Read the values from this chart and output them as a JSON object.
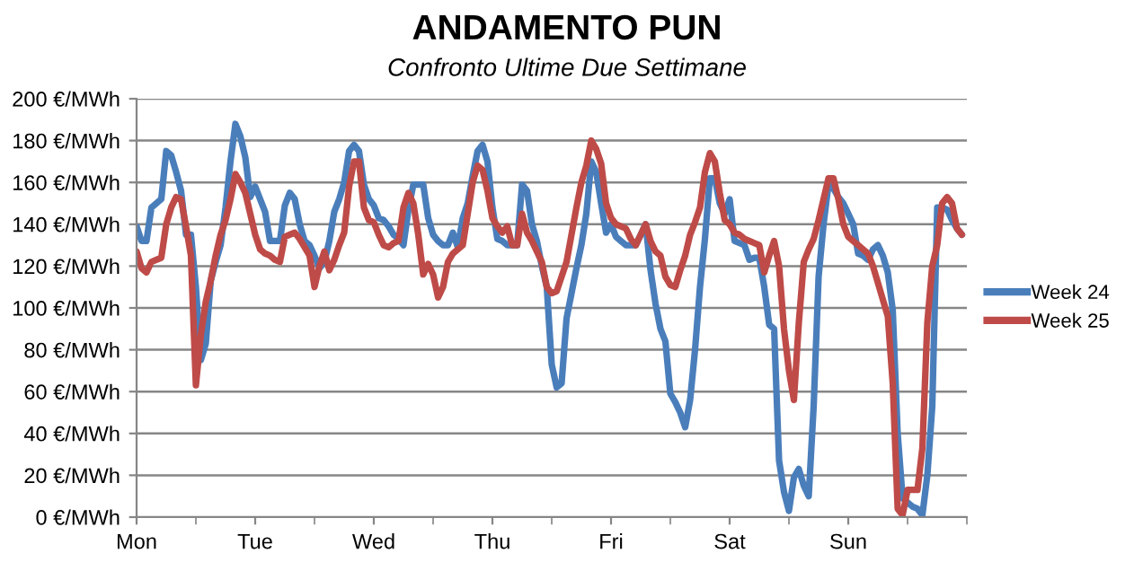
{
  "chart_data": {
    "type": "line",
    "title": "ANDAMENTO PUN",
    "subtitle": "Confronto Ultime Due Settimane",
    "categories": [
      "Mon",
      null,
      null,
      null,
      null,
      null,
      null,
      null,
      null,
      null,
      null,
      null,
      null,
      null,
      null,
      null,
      null,
      null,
      null,
      null,
      null,
      null,
      null,
      null,
      "Tue",
      null,
      null,
      null,
      null,
      null,
      null,
      null,
      null,
      null,
      null,
      null,
      null,
      null,
      null,
      null,
      null,
      null,
      null,
      null,
      null,
      null,
      null,
      null,
      "Wed",
      null,
      null,
      null,
      null,
      null,
      null,
      null,
      null,
      null,
      null,
      null,
      null,
      null,
      null,
      null,
      null,
      null,
      null,
      null,
      null,
      null,
      null,
      null,
      "Thu",
      null,
      null,
      null,
      null,
      null,
      null,
      null,
      null,
      null,
      null,
      null,
      null,
      null,
      null,
      null,
      null,
      null,
      null,
      null,
      null,
      null,
      null,
      null,
      "Fri",
      null,
      null,
      null,
      null,
      null,
      null,
      null,
      null,
      null,
      null,
      null,
      null,
      null,
      null,
      null,
      null,
      null,
      null,
      null,
      null,
      null,
      null,
      null,
      "Sat",
      null,
      null,
      null,
      null,
      null,
      null,
      null,
      null,
      null,
      null,
      null,
      null,
      null,
      null,
      null,
      null,
      null,
      null,
      null,
      null,
      null,
      null,
      null,
      "Sun",
      null,
      null,
      null,
      null,
      null,
      null,
      null,
      null,
      null,
      null,
      null,
      null,
      null,
      null,
      null,
      null,
      null,
      null,
      null,
      null,
      null,
      null,
      null
    ],
    "ylim": [
      0,
      200
    ],
    "yticks": [
      {
        "value": 0,
        "label": "0 €/MWh"
      },
      {
        "value": 20,
        "label": "20 €/MWh"
      },
      {
        "value": 40,
        "label": "40 €/MWh"
      },
      {
        "value": 60,
        "label": "60 €/MWh"
      },
      {
        "value": 80,
        "label": "80 €/MWh"
      },
      {
        "value": 100,
        "label": "100 €/MWh"
      },
      {
        "value": 120,
        "label": "120 €/MWh"
      },
      {
        "value": 140,
        "label": "140 €/MWh"
      },
      {
        "value": 160,
        "label": "160 €/MWh"
      },
      {
        "value": 180,
        "label": "180 €/MWh"
      },
      {
        "value": 200,
        "label": "200 €/MWh"
      }
    ],
    "grid": "y",
    "legend": "right",
    "series": [
      {
        "name": "Week 24",
        "color": "#4a7ebb",
        "values": [
          139,
          132,
          132,
          148,
          150,
          152,
          175,
          173,
          165,
          156,
          135,
          135,
          110,
          75,
          83,
          113,
          122,
          130,
          148,
          170,
          188,
          182,
          172,
          153,
          158,
          152,
          146,
          132,
          132,
          132,
          149,
          155,
          152,
          140,
          132,
          130,
          125,
          119,
          122,
          132,
          146,
          152,
          160,
          175,
          178,
          175,
          159,
          152,
          149,
          143,
          142,
          139,
          135,
          133,
          130,
          147,
          159,
          159,
          159,
          143,
          135,
          132,
          130,
          130,
          136,
          129,
          143,
          150,
          163,
          175,
          178,
          170,
          148,
          133,
          132,
          130,
          130,
          130,
          159,
          156,
          140,
          132,
          120,
          110,
          73,
          62,
          64,
          95,
          107,
          119,
          130,
          145,
          170,
          165,
          150,
          136,
          140,
          134,
          132,
          130,
          130,
          130,
          135,
          140,
          118,
          102,
          90,
          84,
          59,
          55,
          50,
          43,
          56,
          80,
          110,
          133,
          162,
          162,
          150,
          145,
          152,
          132,
          131,
          130,
          123,
          124,
          124,
          110,
          92,
          90,
          27,
          12,
          3,
          19,
          23,
          15,
          10,
          53,
          115,
          140,
          159,
          157,
          153,
          150,
          145,
          140,
          126,
          125,
          123,
          128,
          130,
          125,
          117,
          99,
          40,
          9,
          7,
          5,
          4,
          1,
          20,
          53,
          148,
          148,
          147,
          142,
          138,
          135
        ]
      },
      {
        "name": "Week 25",
        "color": "#be4b48",
        "values": [
          127,
          119,
          117,
          122,
          123,
          124,
          140,
          148,
          153,
          152,
          139,
          125,
          63,
          87,
          103,
          113,
          125,
          135,
          142,
          152,
          164,
          160,
          155,
          145,
          135,
          128,
          126,
          125,
          123,
          122,
          134,
          135,
          136,
          133,
          129,
          125,
          110,
          120,
          127,
          118,
          123,
          130,
          136,
          158,
          170,
          170,
          148,
          142,
          141,
          135,
          130,
          129,
          131,
          132,
          148,
          155,
          150,
          135,
          116,
          121,
          116,
          105,
          110,
          122,
          126,
          128,
          130,
          145,
          160,
          168,
          166,
          156,
          143,
          139,
          136,
          139,
          130,
          130,
          145,
          136,
          132,
          127,
          122,
          110,
          107,
          108,
          115,
          122,
          135,
          148,
          160,
          168,
          180,
          176,
          169,
          150,
          143,
          140,
          139,
          138,
          133,
          130,
          135,
          140,
          132,
          127,
          125,
          115,
          111,
          110,
          118,
          125,
          135,
          141,
          148,
          165,
          174,
          170,
          155,
          142,
          140,
          136,
          135,
          133,
          132,
          131,
          130,
          117,
          125,
          132,
          120,
          90,
          70,
          56,
          93,
          122,
          128,
          133,
          142,
          152,
          162,
          162,
          152,
          140,
          134,
          132,
          130,
          128,
          126,
          120,
          112,
          104,
          96,
          64,
          4,
          1,
          13,
          13,
          13,
          33,
          93,
          120,
          130,
          150,
          153,
          150,
          138,
          135
        ]
      }
    ]
  }
}
